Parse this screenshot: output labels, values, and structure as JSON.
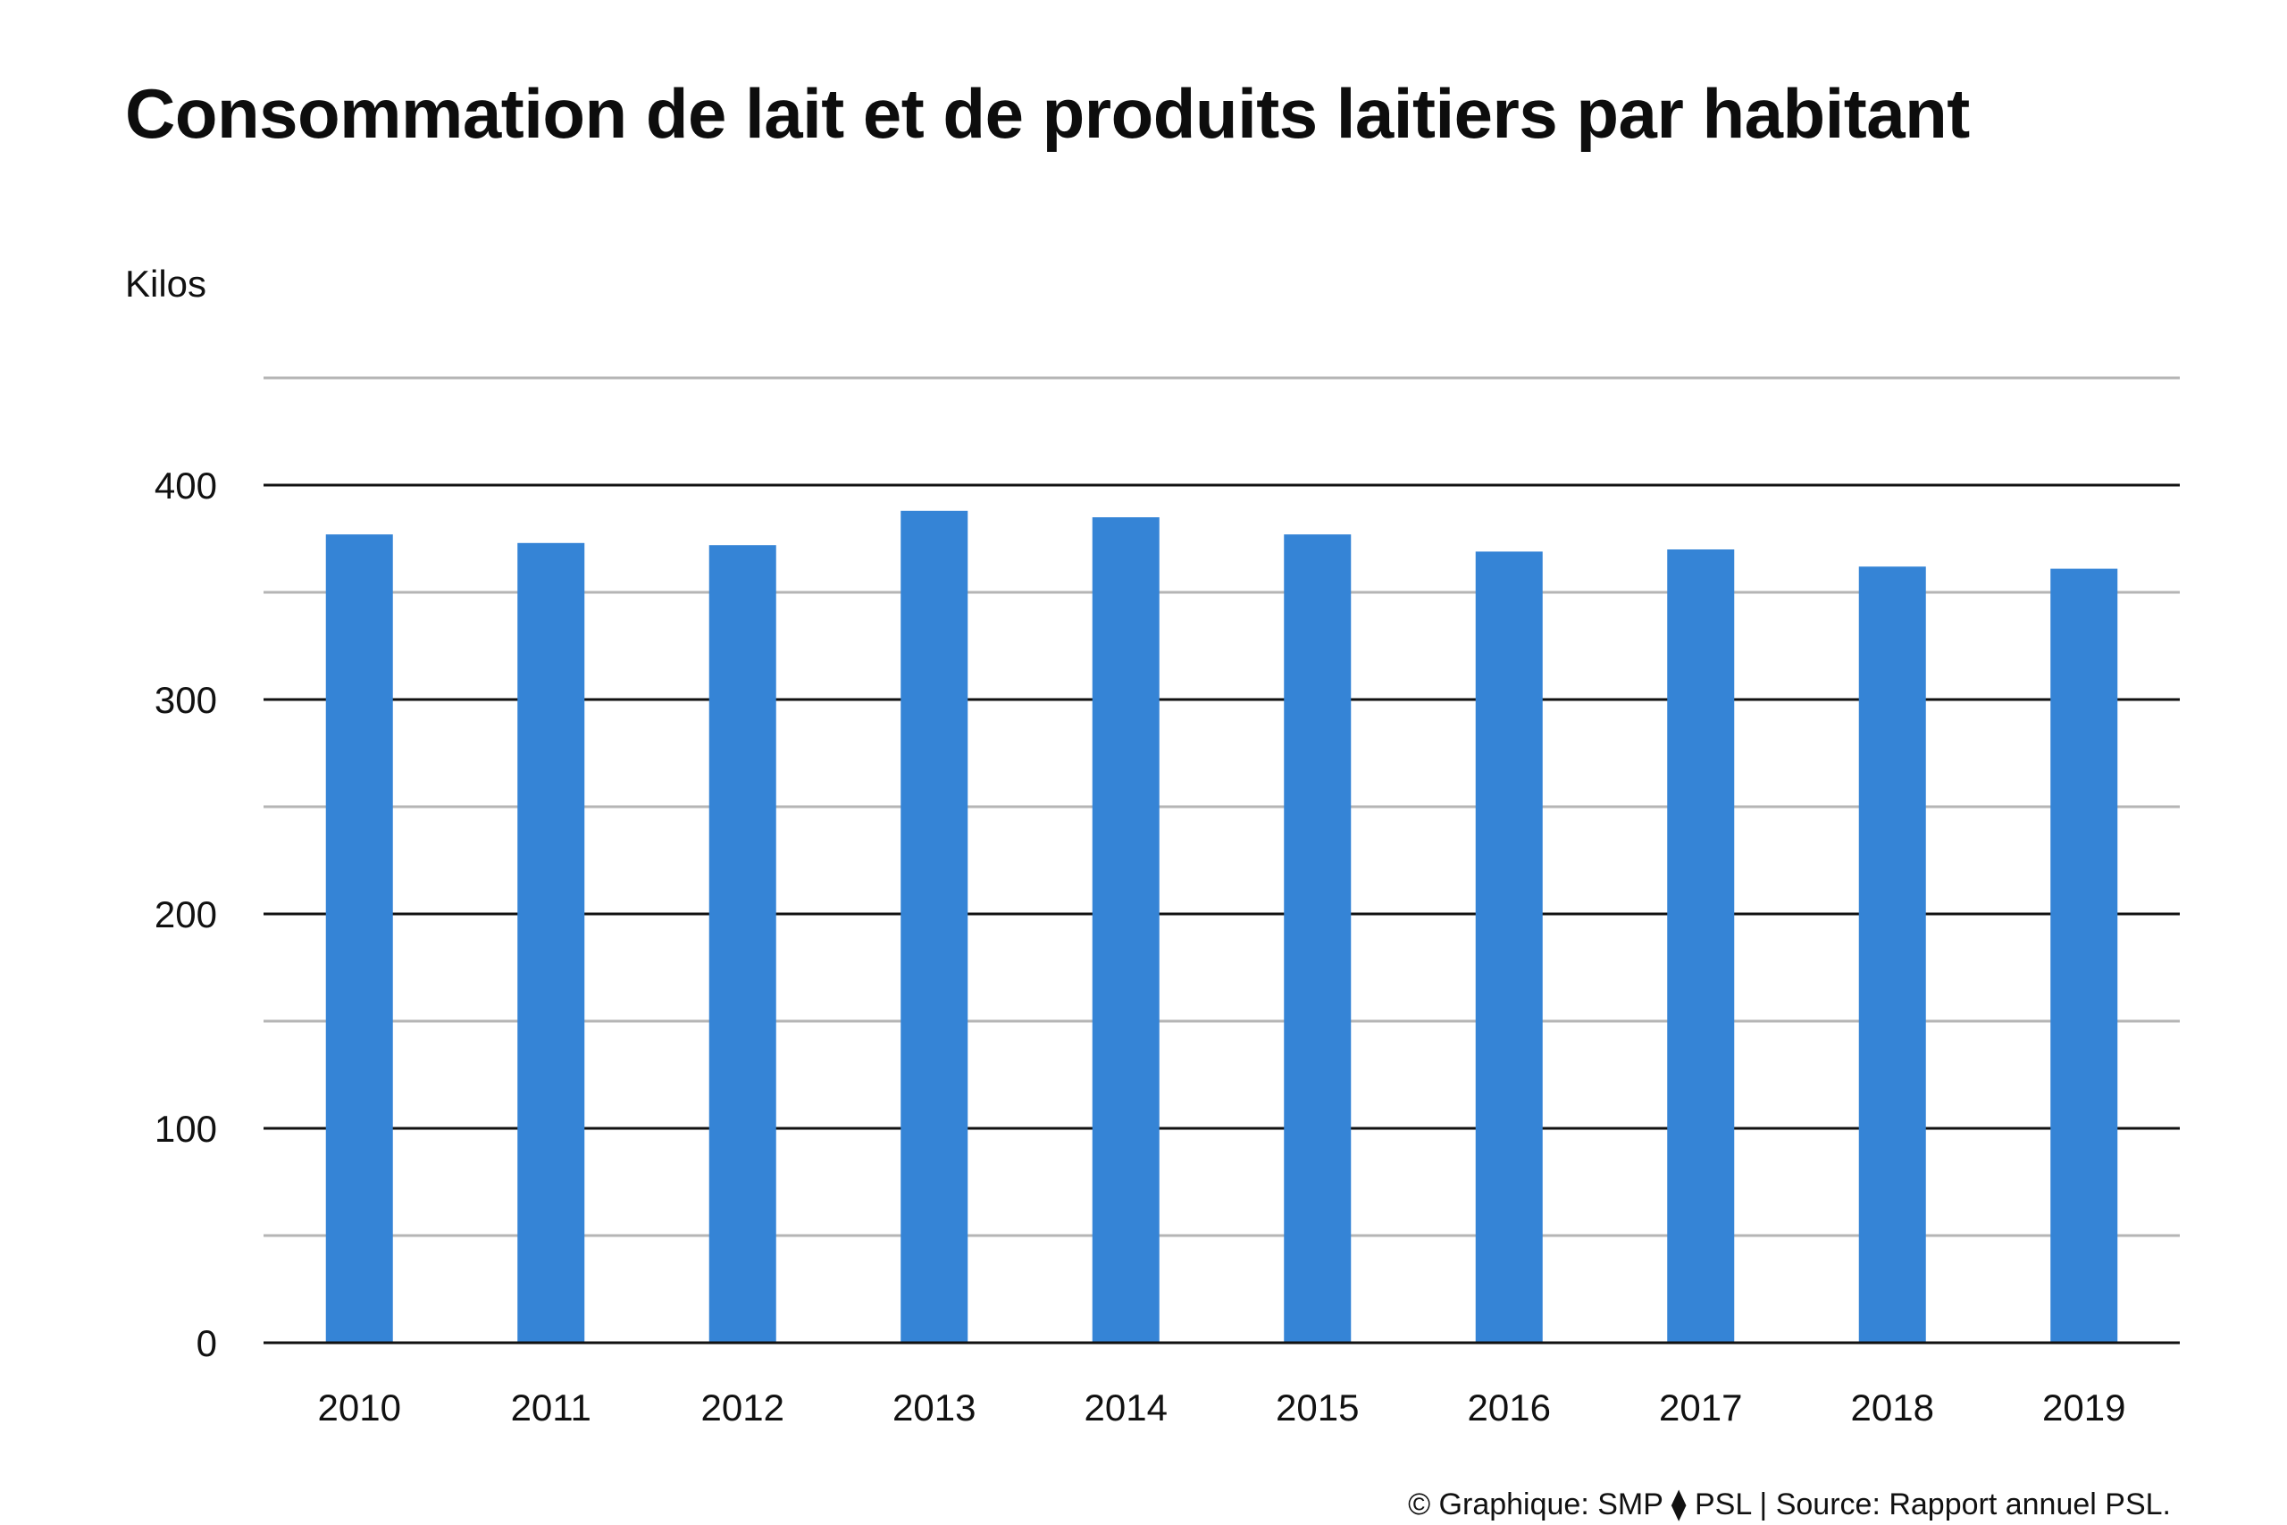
{
  "chart_data": {
    "type": "bar",
    "title": "Consommation de lait et de produits laitiers par habitant",
    "ylabel": "Kilos",
    "xlabel": "",
    "categories": [
      "2010",
      "2011",
      "2012",
      "2013",
      "2014",
      "2015",
      "2016",
      "2017",
      "2018",
      "2019"
    ],
    "values": [
      377,
      373,
      372,
      388,
      385,
      377,
      369,
      370,
      362,
      361
    ],
    "ylim": [
      0,
      450
    ],
    "yticks": [
      0,
      100,
      200,
      300,
      400
    ],
    "ytick_labels": [
      "0",
      "100",
      "200",
      "300",
      "400"
    ],
    "minor_gridlines": [
      50,
      150,
      250,
      350,
      450
    ],
    "grid": true,
    "legend": "none",
    "bar_color": "#3584d6",
    "major_grid_color": "#111111",
    "minor_grid_color": "#b5b5b5"
  },
  "footer": {
    "source": "© Graphique: SMP ⧫ PSL | Source: Rapport annuel PSL."
  }
}
